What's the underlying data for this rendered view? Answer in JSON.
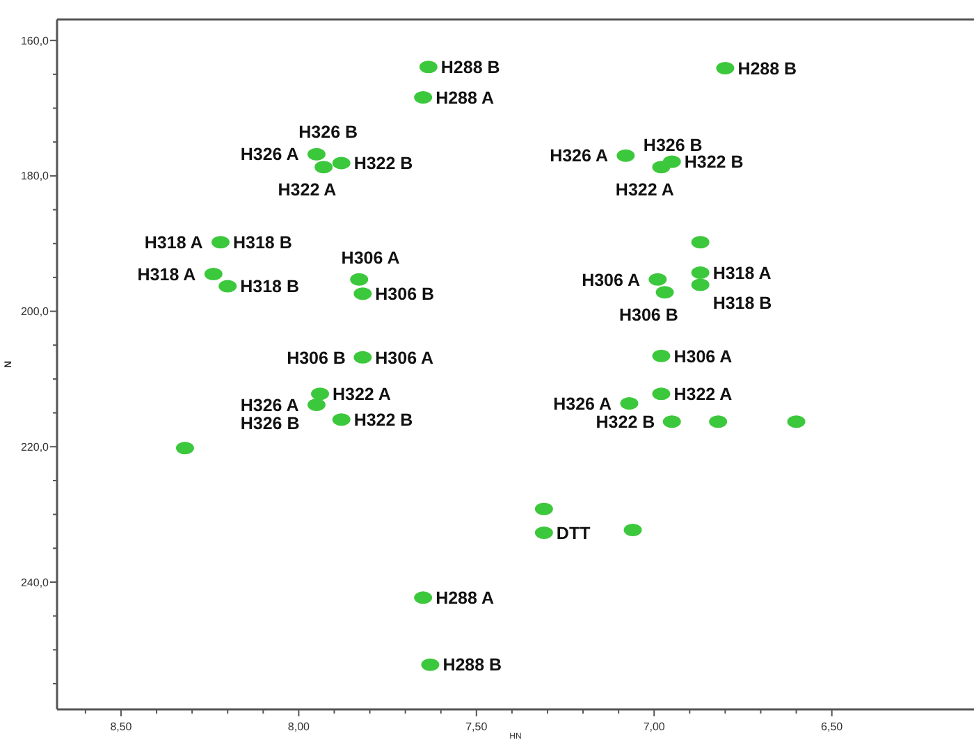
{
  "chart_data": {
    "type": "scatter",
    "xlabel": "HN",
    "ylabel": "N",
    "xlim": [
      8.68,
      6.1
    ],
    "ylim": [
      258.8,
      156.9
    ],
    "xticks": [
      {
        "value": 8.6,
        "label": null
      },
      {
        "value": 8.5,
        "label": "8,50"
      },
      {
        "value": 8.4,
        "label": null
      },
      {
        "value": 8.3,
        "label": null
      },
      {
        "value": 8.2,
        "label": null
      },
      {
        "value": 8.1,
        "label": null
      },
      {
        "value": 8.0,
        "label": "8,00"
      },
      {
        "value": 7.9,
        "label": null
      },
      {
        "value": 7.8,
        "label": null
      },
      {
        "value": 7.7,
        "label": null
      },
      {
        "value": 7.6,
        "label": null
      },
      {
        "value": 7.5,
        "label": "7,50"
      },
      {
        "value": 7.4,
        "label": null
      },
      {
        "value": 7.3,
        "label": null
      },
      {
        "value": 7.2,
        "label": null
      },
      {
        "value": 7.1,
        "label": null
      },
      {
        "value": 7.0,
        "label": "7,00"
      },
      {
        "value": 6.9,
        "label": null
      },
      {
        "value": 6.8,
        "label": null
      },
      {
        "value": 6.7,
        "label": null
      },
      {
        "value": 6.6,
        "label": null
      },
      {
        "value": 6.5,
        "label": "6,50"
      }
    ],
    "yticks": [
      {
        "value": 160,
        "label": "160,0"
      },
      {
        "value": 165,
        "label": null
      },
      {
        "value": 170,
        "label": null
      },
      {
        "value": 175,
        "label": null
      },
      {
        "value": 180,
        "label": "180,0"
      },
      {
        "value": 185,
        "label": null
      },
      {
        "value": 190,
        "label": null
      },
      {
        "value": 195,
        "label": null
      },
      {
        "value": 200,
        "label": "200,0"
      },
      {
        "value": 205,
        "label": null
      },
      {
        "value": 210,
        "label": null
      },
      {
        "value": 215,
        "label": null
      },
      {
        "value": 220,
        "label": "220,0"
      },
      {
        "value": 225,
        "label": null
      },
      {
        "value": 230,
        "label": null
      },
      {
        "value": 235,
        "label": null
      },
      {
        "value": 240,
        "label": "240,0"
      },
      {
        "value": 245,
        "label": null
      },
      {
        "value": 250,
        "label": null
      },
      {
        "value": 255,
        "label": null
      }
    ],
    "grid": false,
    "marker": "circle",
    "series": [
      {
        "color": "#3cc83c",
        "x": [
          7.635,
          7.65,
          6.8,
          7.95,
          7.93,
          7.88,
          8.22,
          8.24,
          8.2,
          7.83,
          7.82,
          7.82,
          7.94,
          7.95,
          7.88,
          8.32,
          7.65,
          7.63,
          7.08,
          6.98,
          6.95,
          6.87,
          6.99,
          6.97,
          6.87,
          6.87,
          6.98,
          6.98,
          7.07,
          6.95,
          6.82,
          6.6,
          7.31,
          7.06,
          7.31
        ],
        "values": [
          163.9,
          168.4,
          164.1,
          176.8,
          178.7,
          178.1,
          189.8,
          194.5,
          196.3,
          195.3,
          197.4,
          206.8,
          212.2,
          213.8,
          216.0,
          220.2,
          242.3,
          252.2,
          177.0,
          178.7,
          177.9,
          189.8,
          195.3,
          197.2,
          194.3,
          196.1,
          206.6,
          212.2,
          213.6,
          216.3,
          216.3,
          216.3,
          232.7,
          232.3,
          229.2
        ]
      }
    ],
    "annotations": [
      {
        "text": "H288 B",
        "x": 7.635,
        "y": 163.9
      },
      {
        "text": "H288 A",
        "x": 7.65,
        "y": 168.4
      },
      {
        "text": "H288 B",
        "x": 6.8,
        "y": 164.1
      },
      {
        "text": "H326 A",
        "x": 7.95,
        "y": 176.8
      },
      {
        "text": "H322 B",
        "x": 7.88,
        "y": 178.1
      },
      {
        "text": "H326 B",
        "x": 7.95,
        "y": 176.8
      },
      {
        "text": "H322 A",
        "x": 7.93,
        "y": 178.7
      },
      {
        "text": "H318 B",
        "x": 8.22,
        "y": 189.8
      },
      {
        "text": "H318 A",
        "x": 8.22,
        "y": 189.8
      },
      {
        "text": "H318 A",
        "x": 8.24,
        "y": 194.5
      },
      {
        "text": "H318 B",
        "x": 8.2,
        "y": 196.3
      },
      {
        "text": "H306 B",
        "x": 7.82,
        "y": 197.4
      },
      {
        "text": "H306 A",
        "x": 7.83,
        "y": 195.3
      },
      {
        "text": "H306 A",
        "x": 7.82,
        "y": 206.8
      },
      {
        "text": "H306 B",
        "x": 7.82,
        "y": 206.8
      },
      {
        "text": "H326 A",
        "x": 7.95,
        "y": 213.8
      },
      {
        "text": "H322 A",
        "x": 7.94,
        "y": 212.2
      },
      {
        "text": "H326 B",
        "x": 7.95,
        "y": 213.8
      },
      {
        "text": "H322 B",
        "x": 7.88,
        "y": 216.0
      },
      {
        "text": "H288 A",
        "x": 7.65,
        "y": 242.3
      },
      {
        "text": "H288 B",
        "x": 7.63,
        "y": 252.2
      },
      {
        "text": "H326 A",
        "x": 7.08,
        "y": 177.0
      },
      {
        "text": "H322 B",
        "x": 6.95,
        "y": 177.9
      },
      {
        "text": "H326 B",
        "x": 6.98,
        "y": 178.7
      },
      {
        "text": "H322 A",
        "x": 6.98,
        "y": 178.7
      },
      {
        "text": "H318 A",
        "x": 6.87,
        "y": 194.3
      },
      {
        "text": "H318 B",
        "x": 6.87,
        "y": 196.1
      },
      {
        "text": "H306 B",
        "x": 6.97,
        "y": 197.2
      },
      {
        "text": "H306 A",
        "x": 6.99,
        "y": 195.3
      },
      {
        "text": "H306 A",
        "x": 6.98,
        "y": 206.6
      },
      {
        "text": "H322 A",
        "x": 6.98,
        "y": 212.2
      },
      {
        "text": "H326 A",
        "x": 7.07,
        "y": 213.6
      },
      {
        "text": "H322 B",
        "x": 6.95,
        "y": 216.3
      },
      {
        "text": "DTT",
        "x": 7.31,
        "y": 232.7
      }
    ]
  }
}
